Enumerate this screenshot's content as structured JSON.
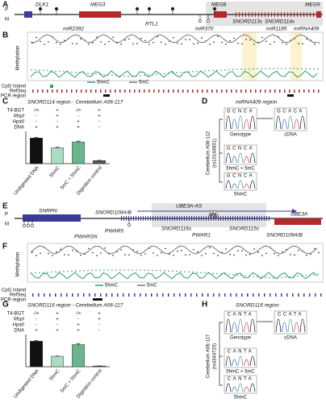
{
  "panel_a": {
    "letter": "A",
    "strand_p": "P",
    "strand_m": "M",
    "genes": [
      "DLK1",
      "MEG3",
      "MEG8",
      "MEG9",
      "miR2392",
      "RTL1",
      "miR370",
      "SNORD113s",
      "SNORD114s",
      "miR1185",
      "miRNA409"
    ]
  },
  "panel_b": {
    "letter": "B",
    "y_label": "Methylation",
    "legend": [
      "5hmC",
      "5mC"
    ],
    "tracks": [
      "CpG Island",
      "RefSeq",
      "PCR region"
    ]
  },
  "panel_d": {
    "letter": "D",
    "title": "miRNA409 region",
    "sample": "Cerebellum A06-112",
    "snp": "(rs10144831)",
    "traces": [
      {
        "label": "Genotype",
        "bases": "GCNCA"
      },
      {
        "label": "cDNA",
        "bases": "GCACA"
      },
      {
        "label": "5hmC + 5mC",
        "bases": "GCNCA"
      },
      {
        "label": "5hmC",
        "bases": "GCNCA"
      }
    ]
  },
  "panel_e": {
    "letter": "E",
    "strand_p": "P",
    "strand_m": "M",
    "genes": [
      "SNRPN",
      "SNORD109A/B",
      "UBE3A-AS",
      "IPW",
      "UBE3A",
      "PWARSN",
      "PWAR5",
      "SNORD116s",
      "PWAR1",
      "SNORD115s",
      "SNORD109A/B"
    ]
  },
  "panel_f": {
    "letter": "F",
    "y_label": "Methylation",
    "legend": [
      "5hmC",
      "5mC"
    ],
    "tracks": [
      "CpG Island",
      "RefSeq",
      "PCR region"
    ]
  },
  "panel_h": {
    "letter": "H",
    "title": "SNORD116 region",
    "sample": "Cerebellum A06-117",
    "snp": "(rs4344720)",
    "traces": [
      {
        "label": "Genotype",
        "bases": "CANTA"
      },
      {
        "label": "cDNA",
        "bases": "CCATA"
      },
      {
        "label": "5hmC + 5mC",
        "bases": "CANTA"
      },
      {
        "label": "5hmC",
        "bases": "CANTA"
      }
    ]
  },
  "chart_data": [
    {
      "type": "bar",
      "letter": "C",
      "title": "SNORD114 region - Cerebellum A06-117",
      "table": [
        {
          "label": "T4-BGT",
          "cells": [
            "-/+",
            "+",
            "-/+",
            "+"
          ]
        },
        {
          "label": "MspI",
          "cells": [
            "-",
            "+",
            "-",
            "+"
          ]
        },
        {
          "label": "HpaII",
          "cells": [
            "-",
            "-",
            "+",
            "-"
          ]
        },
        {
          "label": "DNA",
          "cells": [
            "+",
            "+",
            "+",
            "-"
          ]
        }
      ],
      "categories": [
        "Undigested DNA",
        "5hmC",
        "5mC + 5hmC",
        "Digestion control"
      ],
      "values": [
        100,
        62,
        85,
        12
      ],
      "errors": [
        3,
        2,
        3,
        1
      ],
      "colors": [
        "#111111",
        "#a9dcc0",
        "#6bb58e",
        "#555555"
      ],
      "ylim": [
        0,
        120
      ]
    },
    {
      "type": "bar",
      "letter": "G",
      "title": "SNORD116 region - Cerebellum A06-117",
      "table": [
        {
          "label": "T4-BGT",
          "cells": [
            "-/+",
            "+",
            "-/+",
            "+"
          ]
        },
        {
          "label": "MspI",
          "cells": [
            "-",
            "+",
            "-",
            "+"
          ]
        },
        {
          "label": "HpaII",
          "cells": [
            "-",
            "-",
            "+",
            "-"
          ]
        },
        {
          "label": "DNA",
          "cells": [
            "+",
            "+",
            "+",
            "-"
          ]
        }
      ],
      "categories": [
        "Undigested DNA",
        "5hmC",
        "5mC + 5hmC",
        "Digestion control"
      ],
      "values": [
        100,
        41,
        87,
        3
      ],
      "errors": [
        3,
        1,
        4,
        0.5
      ],
      "colors": [
        "#111111",
        "#a9dcc0",
        "#6bb58e",
        "#555555"
      ],
      "ylim": [
        0,
        120
      ]
    }
  ]
}
